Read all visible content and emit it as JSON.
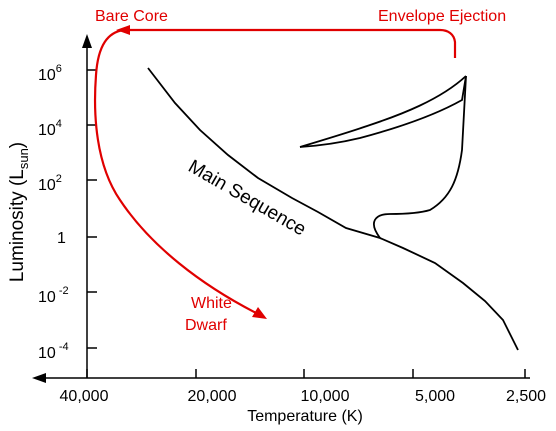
{
  "chart_data": {
    "type": "line",
    "title": "",
    "xlabel": "Temperature (K)",
    "ylabel": {
      "base": "Luminosity (L",
      "sub": "sun",
      "close": ")"
    },
    "x_ticks": [
      "40,000",
      "20,000",
      "10,000",
      "5,000",
      "2,500"
    ],
    "x_scale": "log (reversed)",
    "x_range": [
      40000,
      2500
    ],
    "y_scale": "log",
    "y_ticks": [
      {
        "base": "10",
        "exp": "6"
      },
      {
        "base": "10",
        "exp": "4"
      },
      {
        "base": "10",
        "exp": "2"
      },
      {
        "base": "1",
        "exp": ""
      },
      {
        "base": "10",
        "exp": " -2"
      },
      {
        "base": "10",
        "exp": " -4"
      }
    ],
    "series": [
      {
        "color": "#000000"
      },
      {
        "color": "#e00000"
      }
    ],
    "annotations": {
      "main_sequence": "Main Sequence",
      "bare_core": "Bare Core",
      "envelope_ejection": "Envelope Ejection",
      "white_dwarf_line1": "White",
      "white_dwarf_line2": "Dwarf"
    },
    "colors": {
      "axis": "#000000",
      "evolution_track": "#000000",
      "post_agb_track": "#e00000",
      "labels_red": "#e00000"
    }
  }
}
